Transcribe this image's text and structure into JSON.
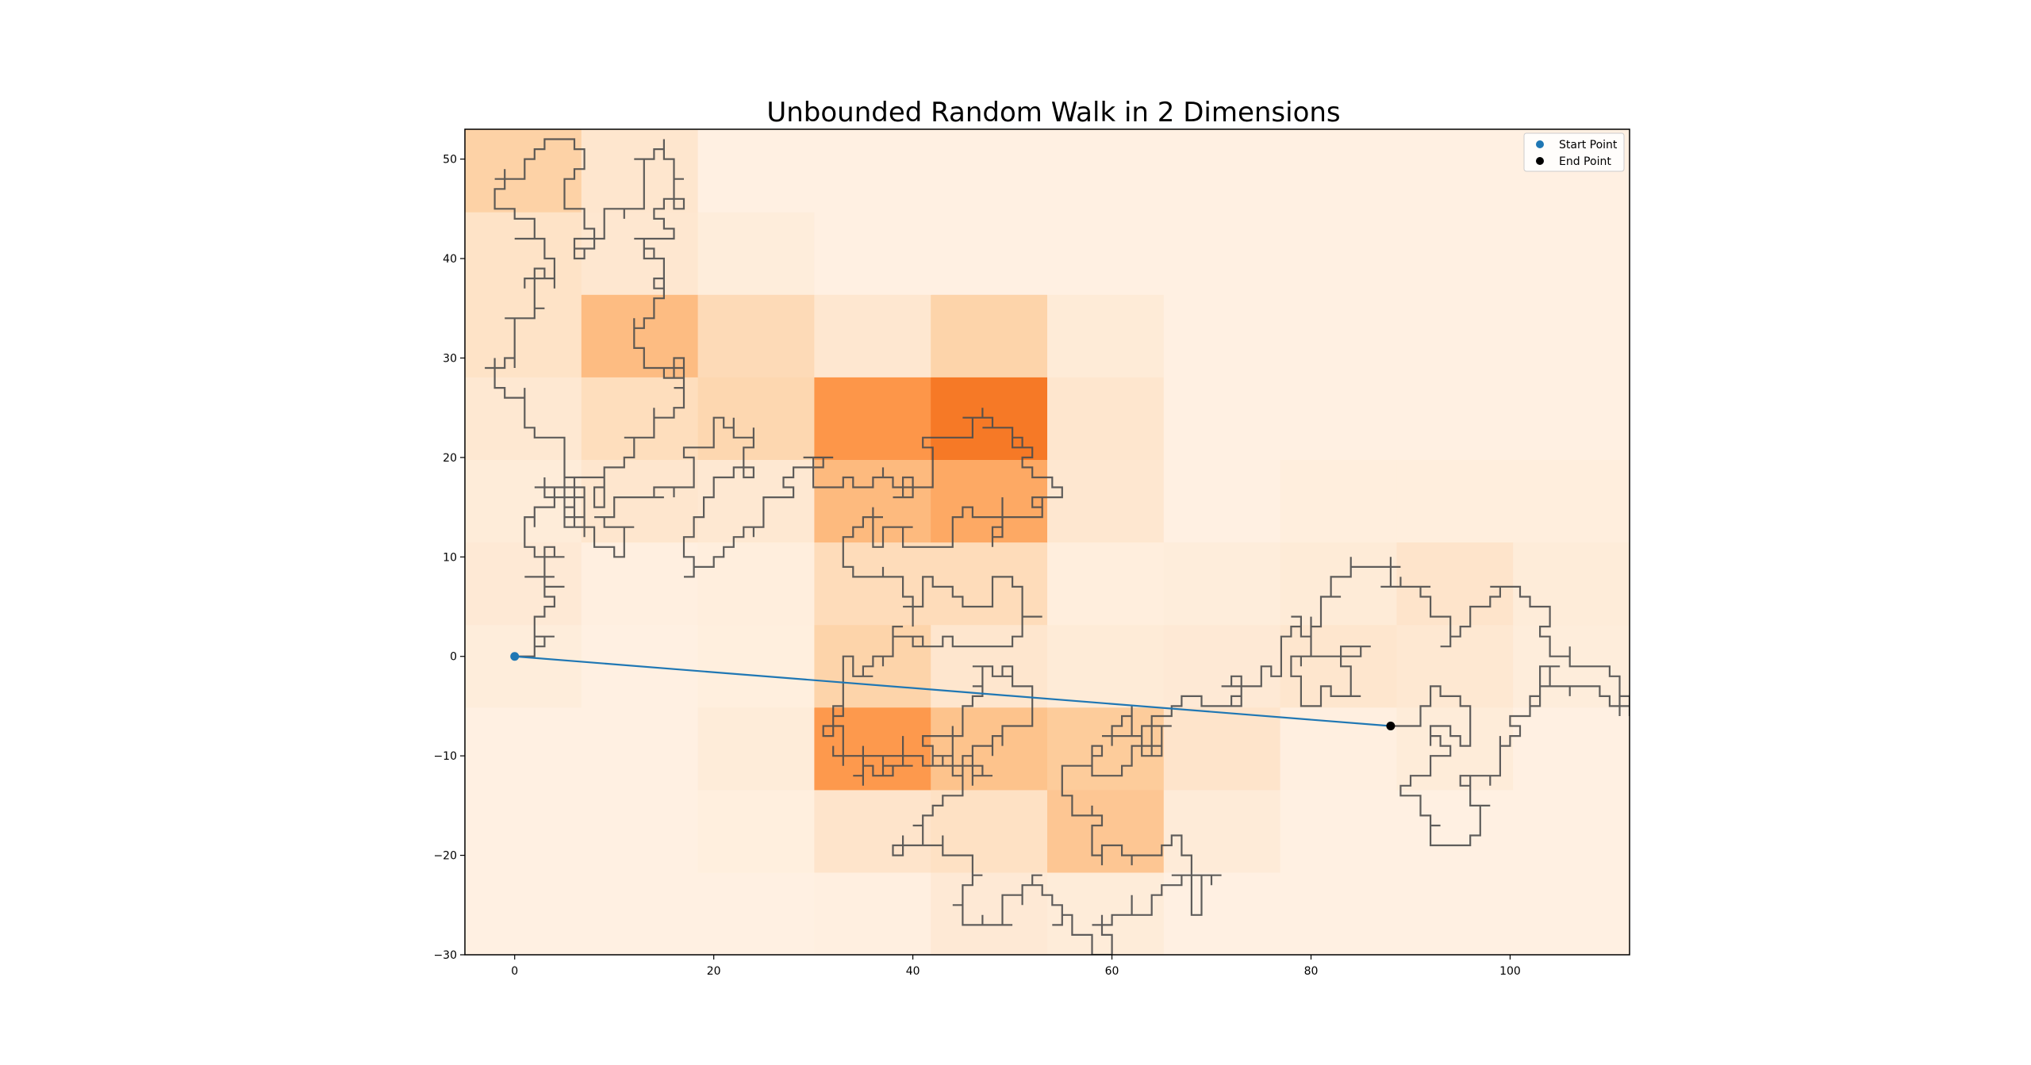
{
  "chart_data": {
    "type": "line",
    "title": "Unbounded Random Walk in 2 Dimensions",
    "xlabel": "",
    "ylabel": "",
    "xlim": [
      -5,
      112
    ],
    "ylim": [
      -30,
      53
    ],
    "grid": false,
    "x_ticks": [
      0,
      20,
      40,
      60,
      80,
      100
    ],
    "y_ticks": [
      -30,
      -20,
      -10,
      0,
      10,
      20,
      30,
      40,
      50
    ],
    "x_tick_labels": [
      "0",
      "20",
      "40",
      "60",
      "80",
      "100"
    ],
    "y_tick_labels": [
      "−30",
      "−20",
      "−10",
      "0",
      "10",
      "20",
      "30",
      "40",
      "50"
    ],
    "legend": {
      "position": "top-right",
      "entries": [
        {
          "label": "Start Point",
          "color": "#1f77b4",
          "marker": "circle"
        },
        {
          "label": "End Point",
          "color": "#000000",
          "marker": "circle"
        }
      ]
    },
    "start_point": [
      0,
      0
    ],
    "end_point": [
      88,
      -7
    ],
    "connecting_line": {
      "from": [
        0,
        0
      ],
      "to": [
        88,
        -7
      ],
      "color": "#1f77b4"
    },
    "walk_path_color": "#4d4d4d",
    "density_heatmap": {
      "colormap": "Oranges",
      "x_edges": [
        -5,
        6.7,
        18.4,
        30.1,
        41.8,
        53.5,
        65.2,
        76.9,
        88.6,
        100.3,
        112
      ],
      "y_edges": [
        -30,
        -21.7,
        -13.4,
        -5.1,
        3.2,
        11.5,
        19.8,
        28.1,
        36.4,
        44.7,
        53
      ],
      "counts": [
        [
          0,
          0,
          0,
          2,
          12,
          8,
          0,
          0,
          0,
          0
        ],
        [
          0,
          0,
          3,
          20,
          24,
          52,
          9,
          0,
          0,
          0
        ],
        [
          0,
          0,
          8,
          88,
          55,
          48,
          20,
          2,
          8,
          0
        ],
        [
          6,
          0,
          3,
          40,
          18,
          10,
          12,
          18,
          14,
          6
        ],
        [
          12,
          2,
          4,
          30,
          30,
          4,
          6,
          10,
          20,
          8
        ],
        [
          8,
          18,
          14,
          62,
          75,
          16,
          0,
          4,
          4,
          4
        ],
        [
          14,
          28,
          36,
          90,
          112,
          18,
          0,
          0,
          0,
          0
        ],
        [
          22,
          60,
          32,
          16,
          40,
          10,
          0,
          0,
          0,
          0
        ],
        [
          22,
          16,
          6,
          0,
          0,
          0,
          0,
          0,
          0,
          0
        ],
        [
          42,
          18,
          0,
          0,
          0,
          0,
          0,
          0,
          0,
          0
        ]
      ]
    },
    "walk_anchors": [
      [
        0,
        0
      ],
      [
        2,
        3
      ],
      [
        4,
        6
      ],
      [
        1,
        8
      ],
      [
        4,
        11
      ],
      [
        1,
        14
      ],
      [
        3,
        17
      ],
      [
        6,
        15
      ],
      [
        5,
        20
      ],
      [
        2,
        23
      ],
      [
        -1,
        26
      ],
      [
        -3,
        29
      ],
      [
        0,
        31
      ],
      [
        2,
        34
      ],
      [
        1,
        37
      ],
      [
        4,
        39
      ],
      [
        3,
        42
      ],
      [
        0,
        44
      ],
      [
        -2,
        47
      ],
      [
        1,
        50
      ],
      [
        4,
        52
      ],
      [
        7,
        49
      ],
      [
        5,
        46
      ],
      [
        8,
        43
      ],
      [
        6,
        40
      ],
      [
        9,
        42
      ],
      [
        11,
        45
      ],
      [
        13,
        49
      ],
      [
        15,
        52
      ],
      [
        16,
        48
      ],
      [
        14,
        45
      ],
      [
        12,
        42
      ],
      [
        15,
        39
      ],
      [
        14,
        35
      ],
      [
        12,
        32
      ],
      [
        14,
        29
      ],
      [
        17,
        27
      ],
      [
        15,
        24
      ],
      [
        12,
        22
      ],
      [
        10,
        19
      ],
      [
        9,
        16
      ],
      [
        7,
        18
      ],
      [
        6,
        13
      ],
      [
        8,
        11
      ],
      [
        12,
        13
      ],
      [
        15,
        17
      ],
      [
        18,
        20
      ],
      [
        20,
        24
      ],
      [
        23,
        22
      ],
      [
        21,
        18
      ],
      [
        19,
        15
      ],
      [
        17,
        12
      ],
      [
        18,
        8
      ],
      [
        20,
        10
      ],
      [
        23,
        12
      ],
      [
        25,
        15
      ],
      [
        28,
        17
      ],
      [
        31,
        20
      ],
      [
        34,
        17
      ],
      [
        37,
        19
      ],
      [
        40,
        16
      ],
      [
        42,
        19
      ],
      [
        45,
        22
      ],
      [
        47,
        25
      ],
      [
        50,
        23
      ],
      [
        52,
        20
      ],
      [
        54,
        17
      ],
      [
        52,
        14
      ],
      [
        49,
        12
      ],
      [
        46,
        14
      ],
      [
        43,
        11
      ],
      [
        40,
        13
      ],
      [
        37,
        11
      ],
      [
        35,
        14
      ],
      [
        33,
        11
      ],
      [
        36,
        8
      ],
      [
        39,
        6
      ],
      [
        42,
        8
      ],
      [
        45,
        5
      ],
      [
        48,
        8
      ],
      [
        51,
        6
      ],
      [
        53,
        4
      ],
      [
        50,
        2
      ],
      [
        47,
        1
      ],
      [
        44,
        2
      ],
      [
        41,
        1
      ],
      [
        38,
        3
      ],
      [
        36,
        0
      ],
      [
        34,
        -2
      ],
      [
        32,
        -5
      ],
      [
        31,
        -8
      ],
      [
        33,
        -11
      ],
      [
        35,
        -9
      ],
      [
        37,
        -12
      ],
      [
        39,
        -8
      ],
      [
        41,
        -11
      ],
      [
        43,
        -8
      ],
      [
        45,
        -6
      ],
      [
        47,
        -3
      ],
      [
        49,
        -1
      ],
      [
        51,
        -3
      ],
      [
        52,
        -6
      ],
      [
        49,
        -8
      ],
      [
        47,
        -11
      ],
      [
        45,
        -13
      ],
      [
        43,
        -15
      ],
      [
        40,
        -17
      ],
      [
        38,
        -20
      ],
      [
        41,
        -18
      ],
      [
        44,
        -20
      ],
      [
        47,
        -22
      ],
      [
        45,
        -25
      ],
      [
        48,
        -27
      ],
      [
        51,
        -25
      ],
      [
        53,
        -23
      ],
      [
        55,
        -26
      ],
      [
        57,
        -28
      ],
      [
        59,
        -30
      ],
      [
        60,
        -27
      ],
      [
        62,
        -24
      ],
      [
        64,
        -26
      ],
      [
        66,
        -23
      ],
      [
        69,
        -24
      ],
      [
        71,
        -22
      ],
      [
        68,
        -20
      ],
      [
        66,
        -18
      ],
      [
        64,
        -20
      ],
      [
        62,
        -21
      ],
      [
        59,
        -19
      ],
      [
        57,
        -16
      ],
      [
        55,
        -14
      ],
      [
        56,
        -11
      ],
      [
        58,
        -9
      ],
      [
        60,
        -12
      ],
      [
        62,
        -9
      ],
      [
        64,
        -7
      ],
      [
        62,
        -5
      ],
      [
        60,
        -7
      ],
      [
        63,
        -8
      ],
      [
        66,
        -6
      ],
      [
        68,
        -4
      ],
      [
        71,
        -5
      ],
      [
        73,
        -3
      ],
      [
        75,
        -1
      ],
      [
        77,
        2
      ],
      [
        79,
        4
      ],
      [
        80,
        1
      ],
      [
        78,
        -2
      ],
      [
        80,
        -5
      ],
      [
        82,
        -3
      ],
      [
        84,
        -4
      ],
      [
        83,
        1
      ],
      [
        81,
        3
      ],
      [
        83,
        6
      ],
      [
        85,
        9
      ],
      [
        87,
        7
      ],
      [
        89,
        8
      ],
      [
        91,
        6
      ],
      [
        93,
        4
      ],
      [
        94,
        1
      ],
      [
        96,
        3
      ],
      [
        98,
        6
      ],
      [
        100,
        7
      ],
      [
        102,
        5
      ],
      [
        104,
        3
      ],
      [
        106,
        1
      ],
      [
        108,
        -1
      ],
      [
        110,
        -2
      ],
      [
        112,
        -4
      ],
      [
        110,
        -5
      ],
      [
        107,
        -3
      ],
      [
        105,
        -1
      ],
      [
        103,
        -3
      ],
      [
        101,
        -6
      ],
      [
        99,
        -9
      ],
      [
        98,
        -12
      ],
      [
        96,
        -14
      ],
      [
        97,
        -17
      ],
      [
        95,
        -19
      ],
      [
        93,
        -17
      ],
      [
        91,
        -14
      ],
      [
        90,
        -12
      ],
      [
        92,
        -10
      ],
      [
        94,
        -8
      ],
      [
        95,
        -5
      ],
      [
        93,
        -3
      ],
      [
        91,
        -5
      ],
      [
        89,
        -7
      ],
      [
        88,
        -7
      ]
    ],
    "walk_seed": 20240517,
    "walk_steps": 3000
  }
}
